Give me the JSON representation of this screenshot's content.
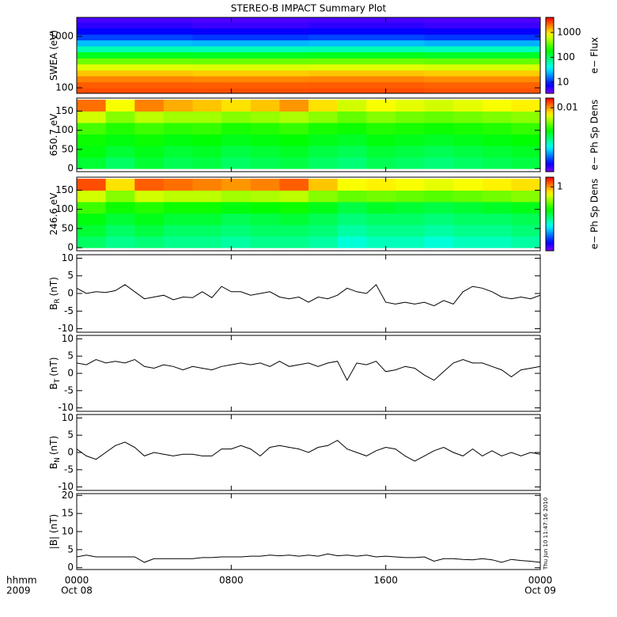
{
  "title": "STEREO-B IMPACT Summary Plot",
  "timestamp": "Thu Jun 10 11:47:16 2010",
  "x_axis": {
    "xlim": [
      0,
      24
    ],
    "xticks": [
      {
        "value": 0,
        "label": "0000"
      },
      {
        "value": 8,
        "label": "0800"
      },
      {
        "value": 16,
        "label": "1600"
      },
      {
        "value": 24,
        "label": "0000"
      }
    ],
    "date_labels": [
      {
        "value": 0,
        "label": "Oct 08"
      },
      {
        "value": 24,
        "label": "Oct 09"
      }
    ],
    "left_labels": [
      "hhmm",
      "2009"
    ]
  },
  "chart_data": [
    {
      "type": "heatmap",
      "ylabel": "SWEA (eV)",
      "ylog": true,
      "ylim": [
        78,
        2340
      ],
      "yticks": [
        100,
        1000
      ],
      "xbins": [
        0,
        6,
        12,
        18,
        24
      ],
      "ybins": [
        78,
        100,
        130,
        170,
        220,
        290,
        380,
        500,
        650,
        850,
        1100,
        1450,
        1900,
        2340
      ],
      "values": [
        [
          2500,
          2450,
          2500,
          2400
        ],
        [
          2300,
          2250,
          2300,
          2200
        ],
        [
          1800,
          1750,
          1800,
          1700
        ],
        [
          1200,
          1150,
          1200,
          1150
        ],
        [
          700,
          680,
          700,
          660
        ],
        [
          350,
          340,
          350,
          330
        ],
        [
          150,
          145,
          150,
          140
        ],
        [
          60,
          58,
          60,
          56
        ],
        [
          25,
          24,
          25,
          23
        ],
        [
          12,
          11,
          12,
          11
        ],
        [
          8,
          7.5,
          8,
          7.5
        ],
        [
          6,
          5.5,
          6,
          5.5
        ],
        [
          5,
          4.8,
          5,
          4.8
        ]
      ],
      "colormap": "rainbow",
      "zlog": true,
      "zlim": [
        3.6,
        4000
      ],
      "zticks": [
        10,
        100,
        1000
      ],
      "zlabel": "e− Flux"
    },
    {
      "type": "heatmap",
      "ylabel": "650.7 eV",
      "ylog": false,
      "ylim": [
        -8,
        184
      ],
      "yticks": [
        0,
        50,
        100,
        150
      ],
      "xbins": [
        0,
        1.5,
        3,
        4.5,
        6,
        7.5,
        9,
        10.5,
        12,
        13.5,
        15,
        16.5,
        18,
        19.5,
        21,
        22.5,
        24
      ],
      "ybins": [
        0,
        30,
        60,
        90,
        120,
        150,
        180
      ],
      "values": [
        [
          0.0015,
          0.0012,
          0.0015,
          0.0013,
          0.0014,
          0.0012,
          0.0013,
          0.0014,
          0.0012,
          0.0011,
          0.0013,
          0.0012,
          0.0011,
          0.0012,
          0.0013,
          0.0014
        ],
        [
          0.0018,
          0.0015,
          0.0017,
          0.0015,
          0.0016,
          0.0014,
          0.0015,
          0.0016,
          0.0014,
          0.0013,
          0.0015,
          0.0014,
          0.0013,
          0.0014,
          0.0015,
          0.0016
        ],
        [
          0.002,
          0.0018,
          0.002,
          0.0018,
          0.0019,
          0.0017,
          0.0018,
          0.0019,
          0.0017,
          0.0016,
          0.0018,
          0.0017,
          0.0016,
          0.0017,
          0.0018,
          0.0019
        ],
        [
          0.0026,
          0.0022,
          0.0025,
          0.0023,
          0.0024,
          0.0021,
          0.0022,
          0.0024,
          0.0021,
          0.002,
          0.0022,
          0.0021,
          0.002,
          0.0021,
          0.0022,
          0.0024
        ],
        [
          0.005,
          0.0035,
          0.0045,
          0.004,
          0.004,
          0.0035,
          0.0038,
          0.0042,
          0.0036,
          0.003,
          0.0035,
          0.0032,
          0.003,
          0.0032,
          0.0034,
          0.0036
        ],
        [
          0.012,
          0.006,
          0.011,
          0.009,
          0.008,
          0.007,
          0.008,
          0.01,
          0.007,
          0.005,
          0.006,
          0.0055,
          0.005,
          0.0055,
          0.006,
          0.0065
        ]
      ],
      "colormap": "rainbow",
      "zlog": true,
      "zlim": [
        0.0001,
        0.02
      ],
      "zticks": [
        0.01
      ],
      "zlabel": "e− Ph Sp Dens"
    },
    {
      "type": "heatmap",
      "ylabel": "246.6 eV",
      "ylog": false,
      "ylim": [
        -8,
        184
      ],
      "yticks": [
        0,
        50,
        100,
        150
      ],
      "xbins": [
        0,
        1.5,
        3,
        4.5,
        6,
        7.5,
        9,
        10.5,
        12,
        13.5,
        15,
        16.5,
        18,
        19.5,
        21,
        22.5,
        24
      ],
      "ybins": [
        0,
        30,
        60,
        90,
        120,
        150,
        180
      ],
      "values": [
        [
          0.12,
          0.1,
          0.11,
          0.1,
          0.1,
          0.09,
          0.1,
          0.1,
          0.09,
          0.07,
          0.08,
          0.08,
          0.07,
          0.08,
          0.08,
          0.09
        ],
        [
          0.15,
          0.12,
          0.14,
          0.12,
          0.12,
          0.11,
          0.12,
          0.12,
          0.11,
          0.09,
          0.1,
          0.1,
          0.09,
          0.1,
          0.1,
          0.11
        ],
        [
          0.18,
          0.15,
          0.17,
          0.15,
          0.15,
          0.13,
          0.14,
          0.15,
          0.13,
          0.11,
          0.12,
          0.12,
          0.11,
          0.12,
          0.12,
          0.13
        ],
        [
          0.25,
          0.2,
          0.22,
          0.2,
          0.2,
          0.18,
          0.19,
          0.2,
          0.17,
          0.14,
          0.16,
          0.15,
          0.14,
          0.15,
          0.16,
          0.17
        ],
        [
          0.5,
          0.35,
          0.5,
          0.45,
          0.45,
          0.4,
          0.42,
          0.45,
          0.35,
          0.3,
          0.32,
          0.3,
          0.28,
          0.3,
          0.32,
          0.35
        ],
        [
          1.4,
          0.7,
          1.3,
          1.2,
          1.1,
          1,
          1.1,
          1.3,
          0.8,
          0.6,
          0.65,
          0.6,
          0.55,
          0.6,
          0.65,
          0.7
        ]
      ],
      "colormap": "rainbow",
      "zlog": true,
      "zlim": [
        0.01,
        2
      ],
      "zticks": [
        1
      ],
      "zlabel": "e− Ph Sp Dens"
    },
    {
      "type": "line",
      "ylabel": "B",
      "ylabel_sub": "R",
      "ylabel_unit": "(nT)",
      "color": "#000000",
      "ylim": [
        -11,
        11
      ],
      "yticks": [
        -10,
        -5,
        0,
        5,
        10
      ],
      "x": [
        0,
        0.5,
        1,
        1.5,
        2,
        2.5,
        3,
        3.5,
        4,
        4.5,
        5,
        5.5,
        6,
        6.5,
        7,
        7.5,
        8,
        8.5,
        9,
        9.5,
        10,
        10.5,
        11,
        11.5,
        12,
        12.5,
        13,
        13.5,
        14,
        14.5,
        15,
        15.5,
        16,
        16.5,
        17,
        17.5,
        18,
        18.5,
        19,
        19.5,
        20,
        20.5,
        21,
        21.5,
        22,
        22.5,
        23,
        23.5,
        24
      ],
      "values": [
        1.5,
        0,
        0.5,
        0.3,
        0.8,
        2.5,
        0.5,
        -1.5,
        -1,
        -0.5,
        -1.8,
        -1,
        -1.2,
        0.5,
        -1.2,
        2,
        0.5,
        0.5,
        -0.5,
        0,
        0.5,
        -1,
        -1.5,
        -1,
        -2.5,
        -1,
        -1.5,
        -0.5,
        1.5,
        0.5,
        0,
        2.5,
        -2.5,
        -3,
        -2.5,
        -3,
        -2.5,
        -3.5,
        -2,
        -3,
        0.5,
        2,
        1.5,
        0.5,
        -1,
        -1.5,
        -1,
        -1.5,
        -0.5
      ]
    },
    {
      "type": "line",
      "ylabel": "B",
      "ylabel_sub": "T",
      "ylabel_unit": "(nT)",
      "color": "#000000",
      "ylim": [
        -11,
        11
      ],
      "yticks": [
        -10,
        -5,
        0,
        5,
        10
      ],
      "x": [
        0,
        0.5,
        1,
        1.5,
        2,
        2.5,
        3,
        3.5,
        4,
        4.5,
        5,
        5.5,
        6,
        6.5,
        7,
        7.5,
        8,
        8.5,
        9,
        9.5,
        10,
        10.5,
        11,
        11.5,
        12,
        12.5,
        13,
        13.5,
        14,
        14.5,
        15,
        15.5,
        16,
        16.5,
        17,
        17.5,
        18,
        18.5,
        19,
        19.5,
        20,
        20.5,
        21,
        21.5,
        22,
        22.5,
        23,
        23.5,
        24
      ],
      "values": [
        3,
        2.5,
        4,
        3,
        3.5,
        3,
        4,
        2,
        1.5,
        2.5,
        2,
        1,
        2,
        1.5,
        1,
        2,
        2.5,
        3,
        2.5,
        3,
        2,
        3.5,
        2,
        2.5,
        3,
        2,
        3,
        3.5,
        -2,
        3,
        2.5,
        3.5,
        0.5,
        1,
        2,
        1.5,
        -0.5,
        -2,
        0.5,
        3,
        4,
        3,
        3,
        2,
        1,
        -1,
        1,
        1.5,
        2
      ]
    },
    {
      "type": "line",
      "ylabel": "B",
      "ylabel_sub": "N",
      "ylabel_unit": "(nT)",
      "color": "#000000",
      "ylim": [
        -11,
        11
      ],
      "yticks": [
        -10,
        -5,
        0,
        5,
        10
      ],
      "x": [
        0,
        0.5,
        1,
        1.5,
        2,
        2.5,
        3,
        3.5,
        4,
        4.5,
        5,
        5.5,
        6,
        6.5,
        7,
        7.5,
        8,
        8.5,
        9,
        9.5,
        10,
        10.5,
        11,
        11.5,
        12,
        12.5,
        13,
        13.5,
        14,
        14.5,
        15,
        15.5,
        16,
        16.5,
        17,
        17.5,
        18,
        18.5,
        19,
        19.5,
        20,
        20.5,
        21,
        21.5,
        22,
        22.5,
        23,
        23.5,
        24
      ],
      "values": [
        1,
        -1,
        -2,
        0,
        2,
        3,
        1.5,
        -1,
        0,
        -0.5,
        -1,
        -0.5,
        -0.5,
        -1,
        -1,
        1,
        1,
        2,
        1,
        -1,
        1.5,
        2,
        1.5,
        1,
        0,
        1.5,
        2,
        3.5,
        1,
        0,
        -1,
        0.5,
        1.5,
        1,
        -1,
        -2.5,
        -1,
        0.5,
        1.5,
        0,
        -1,
        1,
        -1,
        0.5,
        -1,
        0,
        -1,
        0,
        -0.5
      ]
    },
    {
      "type": "line",
      "ylabel": "|B| (nT)",
      "color": "#000000",
      "ylim": [
        -0.5,
        20.5
      ],
      "yticks": [
        0,
        5,
        10,
        15,
        20
      ],
      "x": [
        0,
        0.5,
        1,
        1.5,
        2,
        2.5,
        3,
        3.5,
        4,
        4.5,
        5,
        5.5,
        6,
        6.5,
        7,
        7.5,
        8,
        8.5,
        9,
        9.5,
        10,
        10.5,
        11,
        11.5,
        12,
        12.5,
        13,
        13.5,
        14,
        14.5,
        15,
        15.5,
        16,
        16.5,
        17,
        17.5,
        18,
        18.5,
        19,
        19.5,
        20,
        20.5,
        21,
        21.5,
        22,
        22.5,
        23,
        23.5,
        24
      ],
      "values": [
        3,
        3.5,
        3,
        3,
        3,
        3,
        3,
        1.5,
        2.5,
        2.5,
        2.5,
        2.5,
        2.5,
        2.8,
        2.8,
        3,
        3,
        3,
        3.2,
        3.2,
        3.5,
        3.3,
        3.5,
        3.2,
        3.5,
        3.2,
        3.8,
        3.3,
        3.5,
        3.2,
        3.5,
        3,
        3.2,
        3,
        2.8,
        2.8,
        3,
        1.8,
        2.5,
        2.5,
        2.3,
        2.2,
        2.5,
        2.2,
        1.5,
        2.3,
        2,
        1.8,
        1.5
      ]
    }
  ]
}
